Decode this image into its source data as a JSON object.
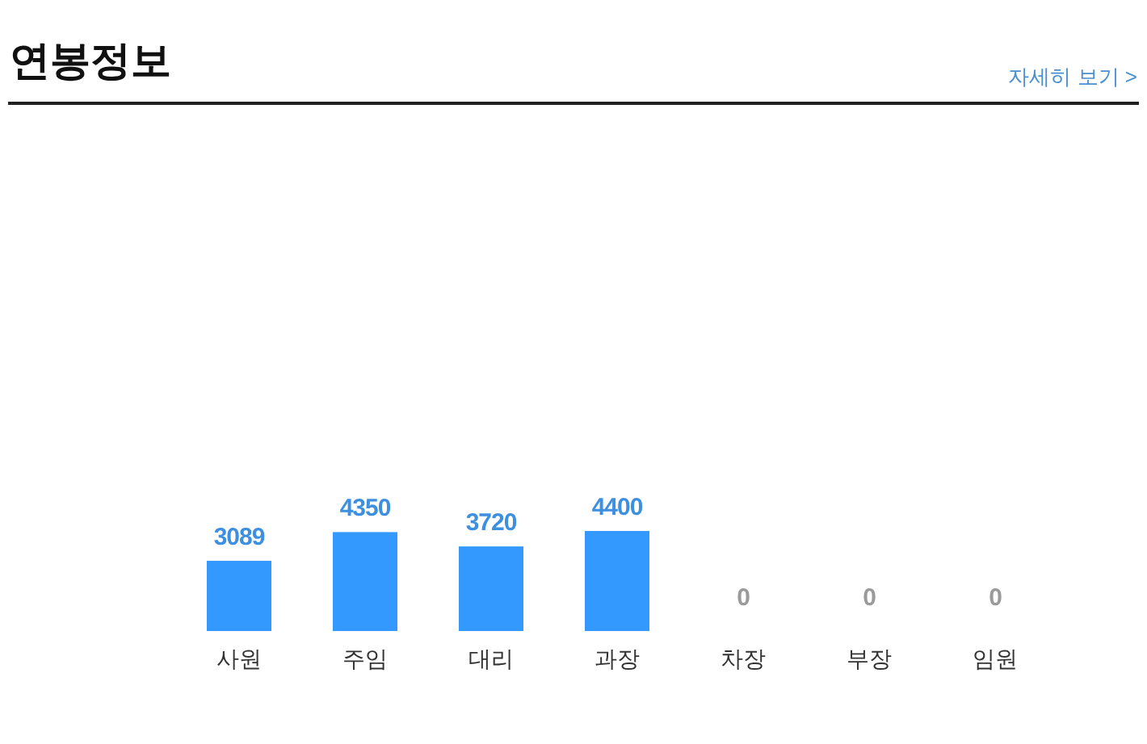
{
  "chart_data": {
    "type": "bar",
    "title": "연봉정보",
    "annotations": [
      "자세히 보기 >"
    ],
    "categories": [
      "사원",
      "주임",
      "대리",
      "과장",
      "차장",
      "부장",
      "임원"
    ],
    "values": [
      3089,
      4350,
      3720,
      4400,
      0,
      0,
      0
    ],
    "color": "#3399ff",
    "data_labels": true
  }
}
